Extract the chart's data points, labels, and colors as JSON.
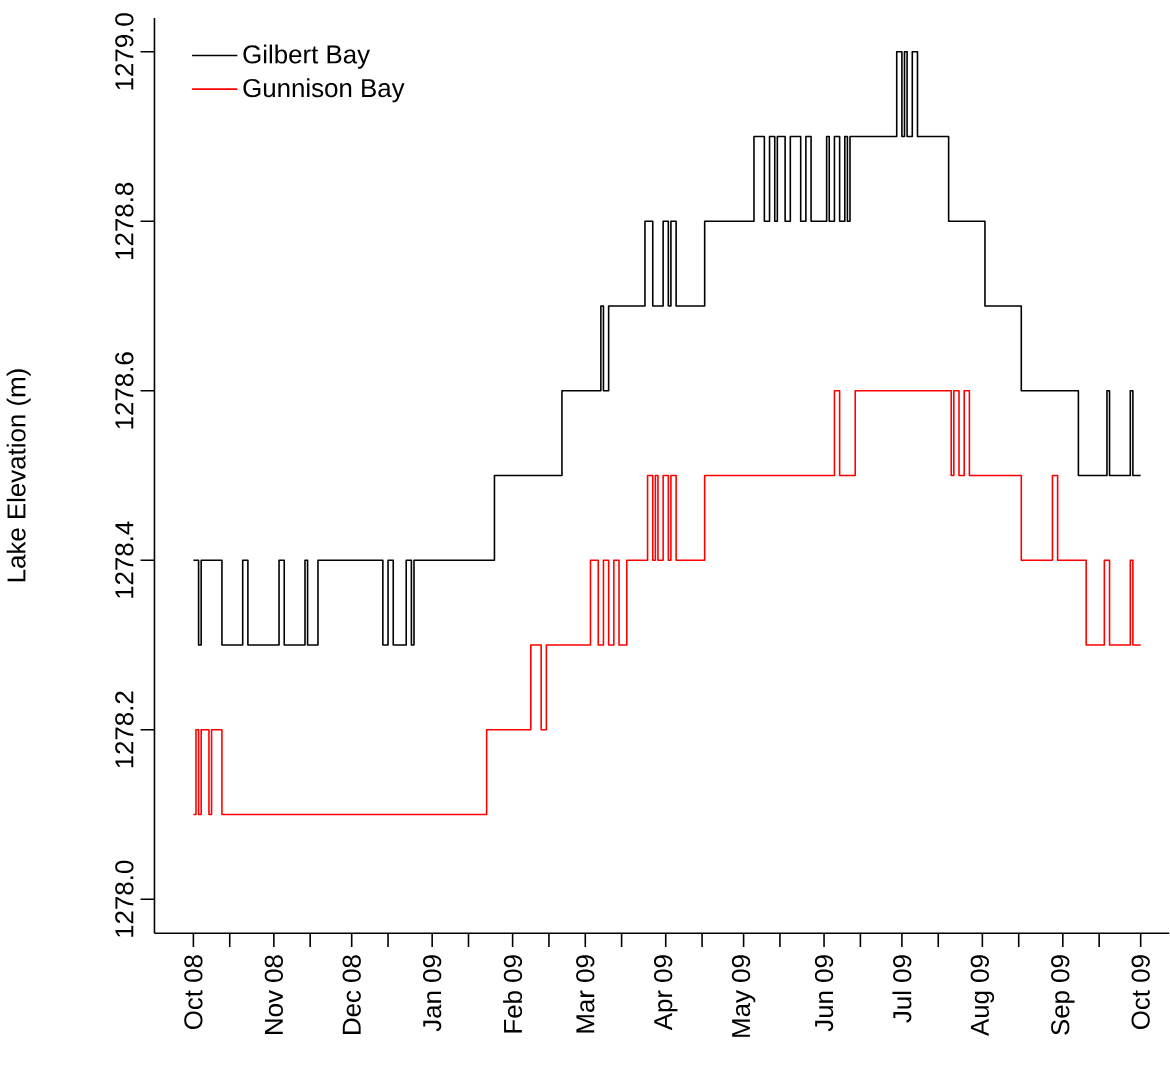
{
  "chart_data": {
    "type": "step",
    "ylabel": "Lake Elevation (m)",
    "legend": "top left",
    "xlim": [
      "2008-09-16",
      "2009-10-12"
    ],
    "ylim": [
      1277.96,
      1279.04
    ],
    "yticks": [
      {
        "value": 1278.0,
        "label": "1278.0"
      },
      {
        "value": 1278.2,
        "label": "1278.2"
      },
      {
        "value": 1278.4,
        "label": "1278.4"
      },
      {
        "value": 1278.6,
        "label": "1278.6"
      },
      {
        "value": 1278.8,
        "label": "1278.8"
      },
      {
        "value": 1279.0,
        "label": "1279.0"
      }
    ],
    "xticks": [
      {
        "value": "2008-10-01",
        "label": "Oct 08"
      },
      {
        "value": "2008-10-15",
        "label": null
      },
      {
        "value": "2008-11-01",
        "label": "Nov 08"
      },
      {
        "value": "2008-11-15",
        "label": null
      },
      {
        "value": "2008-12-01",
        "label": "Dec 08"
      },
      {
        "value": "2008-12-15",
        "label": null
      },
      {
        "value": "2009-01-01",
        "label": "Jan 09"
      },
      {
        "value": "2009-01-15",
        "label": null
      },
      {
        "value": "2009-02-01",
        "label": "Feb 09"
      },
      {
        "value": "2009-02-15",
        "label": null
      },
      {
        "value": "2009-03-01",
        "label": "Mar 09"
      },
      {
        "value": "2009-03-15",
        "label": null
      },
      {
        "value": "2009-04-01",
        "label": "Apr 09"
      },
      {
        "value": "2009-04-15",
        "label": null
      },
      {
        "value": "2009-05-01",
        "label": "May 09"
      },
      {
        "value": "2009-05-15",
        "label": null
      },
      {
        "value": "2009-06-01",
        "label": "Jun 09"
      },
      {
        "value": "2009-06-15",
        "label": null
      },
      {
        "value": "2009-07-01",
        "label": "Jul 09"
      },
      {
        "value": "2009-07-15",
        "label": null
      },
      {
        "value": "2009-08-01",
        "label": "Aug 09"
      },
      {
        "value": "2009-08-15",
        "label": null
      },
      {
        "value": "2009-09-01",
        "label": "Sep 09"
      },
      {
        "value": "2009-09-15",
        "label": null
      },
      {
        "value": "2009-10-01",
        "label": "Oct 09"
      }
    ],
    "series": [
      {
        "name": "Gilbert Bay",
        "color": "#000000",
        "x": [
          "2008-10-01",
          "2008-10-03",
          "2008-10-04",
          "2008-10-12",
          "2008-10-20",
          "2008-10-22",
          "2008-11-03",
          "2008-11-05",
          "2008-11-13",
          "2008-11-14",
          "2008-11-18",
          "2008-12-13",
          "2008-12-15",
          "2008-12-17",
          "2008-12-22",
          "2008-12-24",
          "2008-12-25",
          "2009-01-25",
          "2009-02-20",
          "2009-03-07",
          "2009-03-08",
          "2009-03-10",
          "2009-03-24",
          "2009-03-27",
          "2009-03-31",
          "2009-04-02",
          "2009-04-03",
          "2009-04-05",
          "2009-04-16",
          "2009-05-05",
          "2009-05-09",
          "2009-05-11",
          "2009-05-13",
          "2009-05-14",
          "2009-05-17",
          "2009-05-19",
          "2009-05-23",
          "2009-05-25",
          "2009-05-27",
          "2009-06-02",
          "2009-06-03",
          "2009-06-05",
          "2009-06-07",
          "2009-06-09",
          "2009-06-10",
          "2009-06-11",
          "2009-06-29",
          "2009-07-01",
          "2009-07-02",
          "2009-07-03",
          "2009-07-05",
          "2009-07-07",
          "2009-07-19",
          "2009-08-02",
          "2009-08-16",
          "2009-09-07",
          "2009-09-18",
          "2009-09-19",
          "2009-09-27",
          "2009-09-28",
          "2009-10-01"
        ],
        "values": [
          1278.4,
          1278.3,
          1278.4,
          1278.3,
          1278.4,
          1278.3,
          1278.4,
          1278.3,
          1278.4,
          1278.3,
          1278.4,
          1278.3,
          1278.4,
          1278.3,
          1278.4,
          1278.3,
          1278.4,
          1278.5,
          1278.6,
          1278.7,
          1278.6,
          1278.7,
          1278.8,
          1278.7,
          1278.8,
          1278.7,
          1278.8,
          1278.7,
          1278.8,
          1278.9,
          1278.8,
          1278.9,
          1278.8,
          1278.9,
          1278.8,
          1278.9,
          1278.8,
          1278.9,
          1278.8,
          1278.9,
          1278.8,
          1278.9,
          1278.8,
          1278.9,
          1278.8,
          1278.9,
          1279.0,
          1278.9,
          1279.0,
          1278.9,
          1279.0,
          1278.9,
          1278.8,
          1278.7,
          1278.6,
          1278.5,
          1278.6,
          1278.5,
          1278.6,
          1278.5,
          1278.5
        ]
      },
      {
        "name": "Gunnison Bay",
        "color": "#ff0000",
        "x": [
          "2008-10-01",
          "2008-10-02",
          "2008-10-03",
          "2008-10-04",
          "2008-10-07",
          "2008-10-08",
          "2008-10-12",
          "2009-01-22",
          "2009-02-08",
          "2009-02-12",
          "2009-02-14",
          "2009-03-03",
          "2009-03-06",
          "2009-03-08",
          "2009-03-10",
          "2009-03-12",
          "2009-03-14",
          "2009-03-17",
          "2009-03-25",
          "2009-03-27",
          "2009-03-28",
          "2009-03-29",
          "2009-03-31",
          "2009-04-02",
          "2009-04-03",
          "2009-04-05",
          "2009-04-16",
          "2009-06-05",
          "2009-06-07",
          "2009-06-13",
          "2009-07-20",
          "2009-07-21",
          "2009-07-23",
          "2009-07-25",
          "2009-07-27",
          "2009-08-16",
          "2009-08-28",
          "2009-08-30",
          "2009-09-10",
          "2009-09-17",
          "2009-09-19",
          "2009-09-27",
          "2009-09-28",
          "2009-10-01"
        ],
        "values": [
          1278.1,
          1278.2,
          1278.1,
          1278.2,
          1278.1,
          1278.2,
          1278.1,
          1278.2,
          1278.3,
          1278.2,
          1278.3,
          1278.4,
          1278.3,
          1278.4,
          1278.3,
          1278.4,
          1278.3,
          1278.4,
          1278.5,
          1278.4,
          1278.5,
          1278.4,
          1278.5,
          1278.4,
          1278.5,
          1278.4,
          1278.5,
          1278.6,
          1278.5,
          1278.6,
          1278.5,
          1278.6,
          1278.5,
          1278.6,
          1278.5,
          1278.4,
          1278.5,
          1278.4,
          1278.3,
          1278.4,
          1278.3,
          1278.4,
          1278.3,
          1278.3
        ]
      }
    ]
  }
}
